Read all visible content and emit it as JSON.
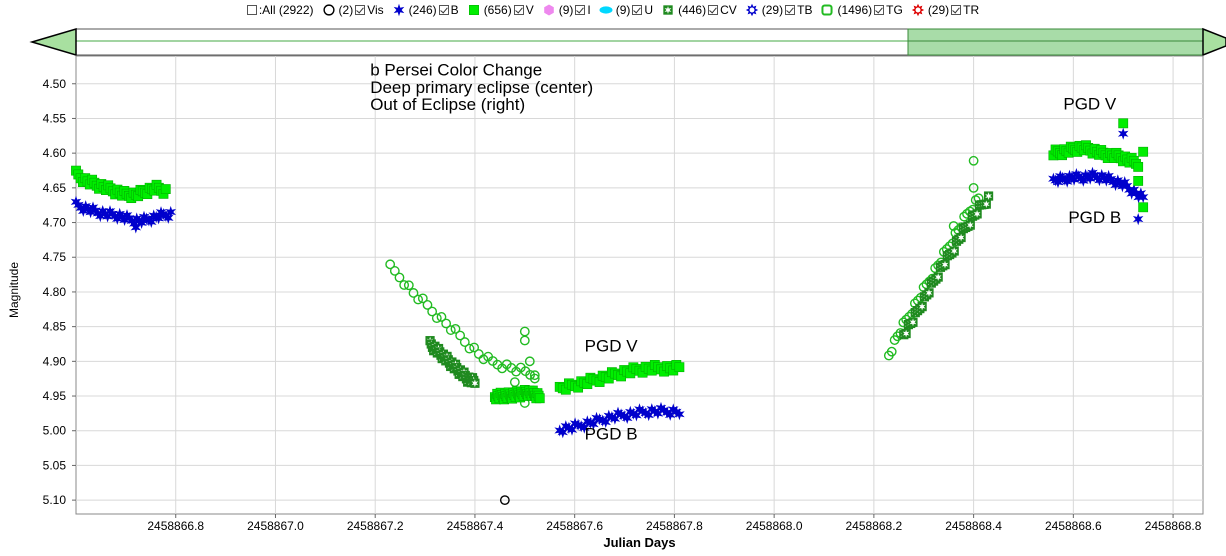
{
  "legend": {
    "items": [
      {
        "key": "all",
        "symbol": "none",
        "checked": false,
        "label": ":All (2922)",
        "color": "#000000"
      },
      {
        "key": "vis",
        "symbol": "circle",
        "checked": true,
        "label": "(2)",
        "name": "Vis",
        "color": "#000000"
      },
      {
        "key": "b",
        "symbol": "star",
        "checked": true,
        "label": "(246)",
        "name": "B",
        "color": "#0000cc"
      },
      {
        "key": "v",
        "symbol": "square",
        "checked": true,
        "label": "(656)",
        "name": "V",
        "color": "#00ee00"
      },
      {
        "key": "i",
        "symbol": "hexagon",
        "checked": true,
        "label": "(9)",
        "name": "I",
        "color": "#ee88ee"
      },
      {
        "key": "u",
        "symbol": "ellipse",
        "checked": true,
        "label": "(9)",
        "name": "U",
        "color": "#00d8ff"
      },
      {
        "key": "cv",
        "symbol": "sq-star",
        "checked": true,
        "label": "(446)",
        "name": "CV",
        "color": "#1f8a1f"
      },
      {
        "key": "tb",
        "symbol": "ring",
        "checked": true,
        "label": "(29)",
        "name": "TB",
        "color": "#0000cc"
      },
      {
        "key": "tg",
        "symbol": "rsquare",
        "checked": true,
        "label": "(1496)",
        "name": "TG",
        "color": "#22bb22"
      },
      {
        "key": "tr",
        "symbol": "ring",
        "checked": true,
        "label": "(29)",
        "name": "TR",
        "color": "#dd0000"
      }
    ]
  },
  "slider": {
    "range_start": 2458867.95,
    "range_end": 2458868.95
  },
  "chart_data": {
    "type": "scatter",
    "title": "",
    "xlabel": "Julian Days",
    "ylabel": "Magnitude",
    "xlim": [
      2458866.6,
      2458868.86
    ],
    "ylim": [
      4.46,
      5.12
    ],
    "y_inverted": true,
    "grid": true,
    "x_ticks": [
      "2458866.8",
      "2458867.0",
      "2458867.2",
      "2458867.4",
      "2458867.6",
      "2458867.8",
      "2458868.0",
      "2458868.2",
      "2458868.4",
      "2458868.6",
      "2458868.8"
    ],
    "x_tick_values": [
      2458866.8,
      2458867.0,
      2458867.2,
      2458867.4,
      2458867.6,
      2458867.8,
      2458868.0,
      2458868.2,
      2458868.4,
      2458868.6,
      2458868.8
    ],
    "y_ticks": [
      "4.50",
      "4.55",
      "4.60",
      "4.65",
      "4.70",
      "4.75",
      "4.80",
      "4.85",
      "4.90",
      "4.95",
      "5.00",
      "5.05",
      "5.10"
    ],
    "y_tick_values": [
      4.5,
      4.55,
      4.6,
      4.65,
      4.7,
      4.75,
      4.8,
      4.85,
      4.9,
      4.95,
      5.0,
      5.05,
      5.1
    ],
    "annotations": [
      {
        "text": "b Persei Color Change",
        "x": 2458867.19,
        "y": 4.488
      },
      {
        "text": "Deep primary eclipse (center)",
        "x": 2458867.19,
        "y": 4.513
      },
      {
        "text": "Out of Eclipse (right)",
        "x": 2458867.19,
        "y": 4.538
      },
      {
        "text": "PGD V",
        "x": 2458867.62,
        "y": 4.886
      },
      {
        "text": "PGD B",
        "x": 2458867.62,
        "y": 5.013
      },
      {
        "text": "PGD V",
        "x": 2458868.58,
        "y": 4.537
      },
      {
        "text": "PGD B",
        "x": 2458868.59,
        "y": 4.701
      }
    ],
    "series": [
      {
        "name": "Vis",
        "symbol": "circle",
        "color": "#000000",
        "points": [
          [
            2458867.46,
            5.1
          ]
        ]
      },
      {
        "name": "V",
        "symbol": "square",
        "color": "#00ee00",
        "segments": [
          {
            "x0": 2458866.6,
            "x1": 2458866.78,
            "y": [
              4.63,
              4.64,
              4.645,
              4.65,
              4.655,
              4.66,
              4.66,
              4.655,
              4.65,
              4.655
            ]
          },
          {
            "x0": 2458867.44,
            "x1": 2458867.53,
            "y": [
              4.95,
              4.95,
              4.948,
              4.945,
              4.95
            ]
          },
          {
            "x0": 2458867.57,
            "x1": 2458867.81,
            "y": [
              4.94,
              4.935,
              4.93,
              4.925,
              4.92,
              4.915,
              4.912,
              4.91,
              4.91,
              4.91
            ]
          },
          {
            "x0": 2458868.56,
            "x1": 2458868.73,
            "y": [
              4.6,
              4.598,
              4.595,
              4.592,
              4.595,
              4.6,
              4.603,
              4.605,
              4.61,
              4.615
            ]
          }
        ],
        "extra_points": [
          [
            2458868.7,
            4.557
          ],
          [
            2458868.74,
            4.678
          ],
          [
            2458868.73,
            4.64
          ],
          [
            2458868.74,
            4.598
          ]
        ]
      },
      {
        "name": "B",
        "symbol": "star",
        "color": "#0000cc",
        "segments": [
          {
            "x0": 2458866.6,
            "x1": 2458866.79,
            "y": [
              4.675,
              4.68,
              4.685,
              4.688,
              4.69,
              4.695,
              4.698,
              4.695,
              4.69,
              4.688
            ]
          },
          {
            "x0": 2458867.57,
            "x1": 2458867.81,
            "y": [
              4.998,
              4.995,
              4.99,
              4.985,
              4.98,
              4.977,
              4.974,
              4.972,
              4.972,
              4.973
            ]
          },
          {
            "x0": 2458868.56,
            "x1": 2458868.74,
            "y": [
              4.64,
              4.637,
              4.635,
              4.635,
              4.633,
              4.635,
              4.64,
              4.645,
              4.655,
              4.665
            ]
          }
        ],
        "extra_points": [
          [
            2458868.7,
            4.572
          ],
          [
            2458868.73,
            4.695
          ],
          [
            2458866.72,
            4.707
          ]
        ]
      },
      {
        "name": "TG",
        "symbol": "circle",
        "color": "#22bb22",
        "segments": [
          {
            "x0": 2458867.23,
            "x1": 2458867.52,
            "y": [
              4.765,
              4.78,
              4.8,
              4.815,
              4.83,
              4.845,
              4.86,
              4.875,
              4.89,
              4.9,
              4.905,
              4.91,
              4.915,
              4.92
            ]
          },
          {
            "x0": 2458868.23,
            "x1": 2458868.41,
            "y": [
              4.89,
              4.86,
              4.835,
              4.81,
              4.785,
              4.76,
              4.735,
              4.71,
              4.685,
              4.665
            ]
          }
        ],
        "extra_points": [
          [
            2458867.5,
            4.857
          ],
          [
            2458867.5,
            4.87
          ],
          [
            2458867.51,
            4.9
          ],
          [
            2458867.52,
            4.92
          ],
          [
            2458867.5,
            4.96
          ],
          [
            2458867.48,
            4.93
          ],
          [
            2458868.4,
            4.611
          ],
          [
            2458868.4,
            4.65
          ],
          [
            2458868.36,
            4.705
          ]
        ]
      },
      {
        "name": "CV",
        "symbol": "sq-star",
        "color": "#1f8a1f",
        "segments": [
          {
            "x0": 2458867.31,
            "x1": 2458867.4,
            "y": [
              4.875,
              4.885,
              4.895,
              4.905,
              4.915,
              4.925,
              4.93
            ]
          },
          {
            "x0": 2458868.26,
            "x1": 2458868.43,
            "y": [
              4.86,
              4.84,
              4.815,
              4.79,
              4.765,
              4.745,
              4.72,
              4.7,
              4.68,
              4.665
            ]
          }
        ]
      }
    ]
  }
}
